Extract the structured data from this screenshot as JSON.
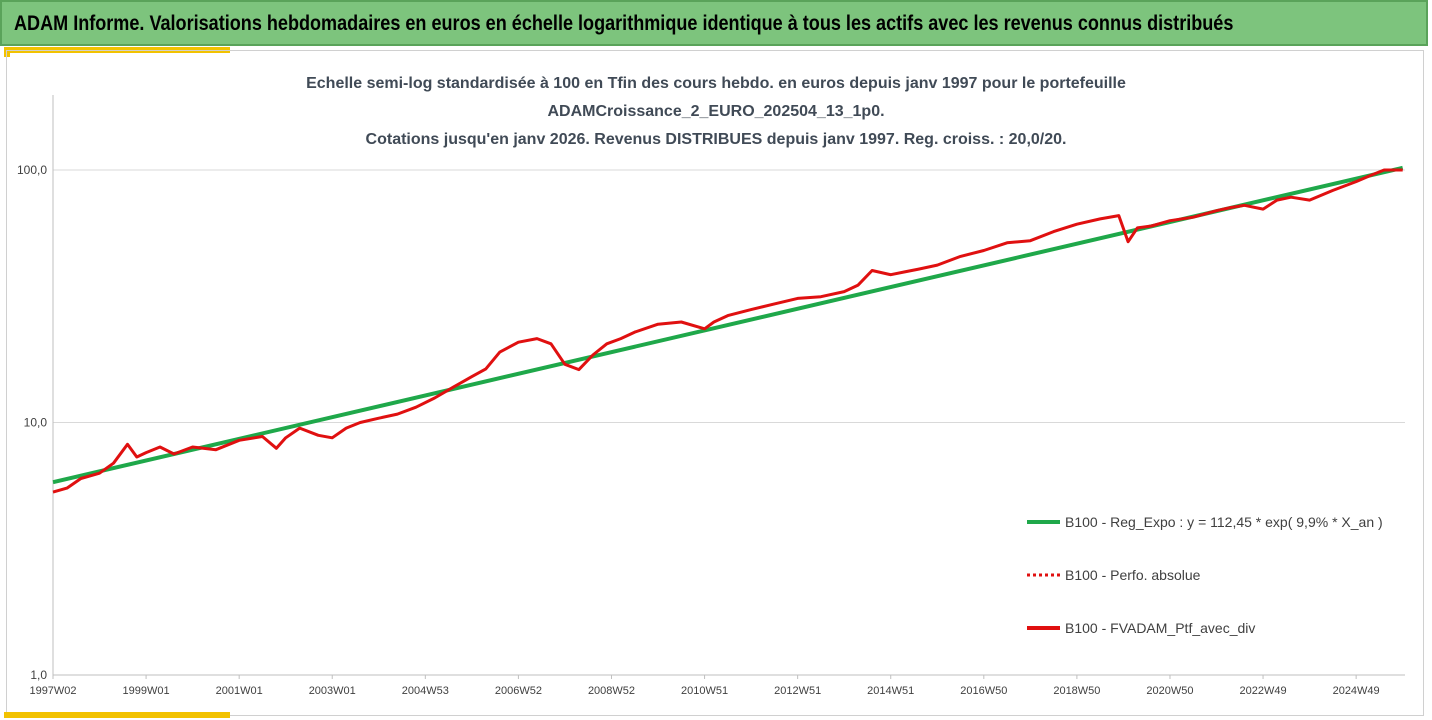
{
  "header": {
    "title": "ADAM Informe. Valorisations hebdomadaires en euros en échelle logarithmique identique à tous les actifs avec les revenus connus distribués"
  },
  "colors": {
    "banner": "#7dc47d",
    "accent": "#f2c200",
    "regression": "#1fa84a",
    "portfolio": "#e01010"
  },
  "chart_data": {
    "type": "line",
    "title_lines": [
      "Echelle semi-log standardisée à 100 en Tfin des cours hebdo.  en euros depuis janv 1997 pour le portefeuille",
      "ADAMCroissance_2_EURO_202504_13_1p0.",
      "Cotations  jusqu'en janv 2026. Revenus DISTRIBUES depuis janv 1997. Reg. croiss. : 20,0/20."
    ],
    "y_scale": "log",
    "ylim": [
      1,
      100
    ],
    "y_ticks": [
      "1,0",
      "10,0",
      "100,0"
    ],
    "y_tick_values": [
      1,
      10,
      100
    ],
    "x_tick_labels": [
      "1997W02",
      "1999W01",
      "2001W01",
      "2003W01",
      "2004W53",
      "2006W52",
      "2008W52",
      "2010W51",
      "2012W51",
      "2014W51",
      "2016W50",
      "2018W50",
      "2020W50",
      "2022W49",
      "2024W49"
    ],
    "x_tick_years": [
      1997.0,
      1999.0,
      2001.0,
      2003.0,
      2005.0,
      2007.0,
      2009.0,
      2011.0,
      2013.0,
      2015.0,
      2017.0,
      2019.0,
      2021.0,
      2023.0,
      2025.0
    ],
    "x_range_years": [
      1997.0,
      2026.05
    ],
    "grid": "horizontal",
    "legend_position": "bottom-right",
    "series": [
      {
        "name": "B100 - Reg_Expo : y = 112,45 * exp( 9,9% *  X_an )",
        "style": "solid",
        "color": "#1fa84a",
        "x": [
          1997.0,
          2026.0
        ],
        "y": [
          5.8,
          102.0
        ]
      },
      {
        "name": "B100 - Perfo. absolue",
        "style": "dotted",
        "color": "#e01010",
        "x": [],
        "y": []
      },
      {
        "name": "B100 - FVADAM_Ptf_avec_div",
        "style": "solid",
        "color": "#e01010",
        "x": [
          1997.0,
          1997.3,
          1997.6,
          1998.0,
          1998.3,
          1998.6,
          1998.8,
          1999.0,
          1999.3,
          1999.6,
          2000.0,
          2000.5,
          2001.0,
          2001.5,
          2001.8,
          2002.0,
          2002.3,
          2002.7,
          2003.0,
          2003.3,
          2003.6,
          2004.0,
          2004.4,
          2004.8,
          2005.2,
          2005.6,
          2006.0,
          2006.3,
          2006.6,
          2007.0,
          2007.4,
          2007.7,
          2008.0,
          2008.3,
          2008.6,
          2008.9,
          2009.2,
          2009.5,
          2010.0,
          2010.5,
          2011.0,
          2011.2,
          2011.5,
          2012.0,
          2012.5,
          2013.0,
          2013.5,
          2014.0,
          2014.3,
          2014.6,
          2015.0,
          2015.3,
          2015.6,
          2016.0,
          2016.5,
          2017.0,
          2017.5,
          2018.0,
          2018.5,
          2019.0,
          2019.5,
          2019.9,
          2020.1,
          2020.3,
          2020.6,
          2021.0,
          2021.5,
          2022.0,
          2022.3,
          2022.6,
          2023.0,
          2023.3,
          2023.6,
          2024.0,
          2024.5,
          2025.0,
          2025.3,
          2025.6,
          2026.0
        ],
        "y": [
          5.3,
          5.5,
          6.0,
          6.3,
          6.9,
          8.2,
          7.3,
          7.6,
          8.0,
          7.5,
          8.0,
          7.8,
          8.5,
          8.8,
          7.9,
          8.7,
          9.5,
          8.9,
          8.7,
          9.5,
          10.0,
          10.4,
          10.8,
          11.5,
          12.5,
          13.8,
          15.2,
          16.3,
          19.0,
          20.8,
          21.5,
          20.5,
          17.0,
          16.2,
          18.5,
          20.5,
          21.5,
          22.8,
          24.5,
          25.0,
          23.5,
          25.0,
          26.5,
          28.0,
          29.5,
          31.0,
          31.5,
          33.0,
          35.0,
          40.0,
          38.5,
          39.5,
          40.5,
          42.0,
          45.5,
          48.0,
          51.5,
          52.5,
          57.0,
          61.0,
          64.0,
          66.0,
          52.0,
          59.0,
          60.0,
          63.0,
          65.0,
          69.0,
          71.0,
          72.5,
          70.0,
          76.0,
          78.0,
          76.0,
          83.0,
          90.0,
          95.0,
          100.0,
          100.0
        ]
      }
    ]
  }
}
